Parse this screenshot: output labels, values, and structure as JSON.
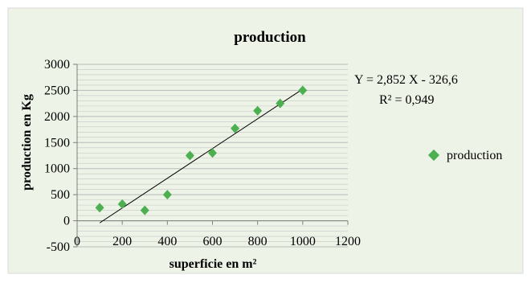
{
  "chart_data": {
    "type": "scatter",
    "title": "production",
    "xlabel": "superficie en m²",
    "ylabel": "production en Kg",
    "xlim": [
      0,
      1200
    ],
    "ylim": [
      -500,
      3000
    ],
    "x_ticks": [
      "0",
      "200",
      "400",
      "600",
      "800",
      "1000",
      "1200"
    ],
    "y_ticks": [
      "-500",
      "0",
      "500",
      "1000",
      "1500",
      "2000",
      "2500",
      "3000"
    ],
    "series": [
      {
        "name": "production",
        "color": "#4caf50",
        "marker": "diamond",
        "points": [
          {
            "x": 100,
            "y": 250
          },
          {
            "x": 200,
            "y": 320
          },
          {
            "x": 300,
            "y": 200
          },
          {
            "x": 400,
            "y": 500
          },
          {
            "x": 500,
            "y": 1250
          },
          {
            "x": 600,
            "y": 1300
          },
          {
            "x": 700,
            "y": 1770
          },
          {
            "x": 800,
            "y": 2110
          },
          {
            "x": 900,
            "y": 2250
          },
          {
            "x": 1000,
            "y": 2500
          }
        ]
      }
    ],
    "trendline": {
      "type": "linear",
      "slope": 2.852,
      "intercept": -326.6,
      "x_range": [
        100,
        1000
      ],
      "equation_label": "Y = 2,852 X - 326,6",
      "r2_label": "R² = 0,949"
    },
    "grid": "horizontal",
    "legend_position": "right",
    "colors": {
      "background": "#eef3e7",
      "grid": "#b9b9b9",
      "marker": "#4caf50",
      "trendline": "#000000"
    }
  }
}
